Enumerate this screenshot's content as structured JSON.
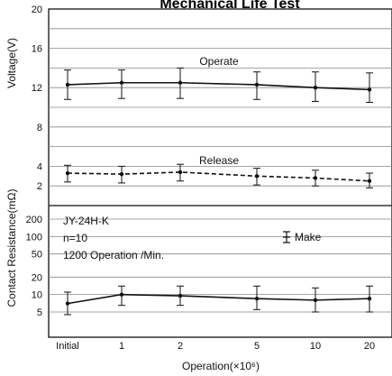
{
  "chart_data": {
    "type": "line",
    "title": "Mechanical Life Test",
    "xlabel": "Operation(×10⁶)",
    "categories": [
      "Initial",
      "1",
      "2",
      "5",
      "10",
      "20"
    ],
    "voltage_panel": {
      "ylabel": "Voltage(V)",
      "ylim": [
        0,
        20
      ],
      "yticks": [
        "20",
        "16",
        "12",
        "8",
        "4",
        "2"
      ],
      "series": [
        {
          "name": "Operate",
          "style": "solid",
          "values": [
            12.3,
            12.5,
            12.5,
            12.3,
            12.0,
            11.8
          ],
          "err_low": [
            10.8,
            10.9,
            10.9,
            10.8,
            10.6,
            10.5
          ],
          "err_high": [
            13.8,
            13.8,
            14.0,
            13.6,
            13.6,
            13.5
          ]
        },
        {
          "name": "Release",
          "style": "dashed",
          "values": [
            3.3,
            3.2,
            3.4,
            3.0,
            2.8,
            2.5
          ],
          "err_low": [
            2.4,
            2.3,
            2.5,
            2.1,
            2.0,
            1.8
          ],
          "err_high": [
            4.1,
            4.0,
            4.2,
            3.8,
            3.6,
            3.3
          ]
        }
      ]
    },
    "resistance_panel": {
      "ylabel": "Contact Resistance(mΩ)",
      "scale": "log",
      "yticks": [
        "200",
        "100",
        "50",
        "20",
        "10",
        "5"
      ],
      "series": [
        {
          "name": "Make",
          "style": "solid",
          "values": [
            7,
            10,
            9.5,
            8.5,
            8,
            8.5
          ],
          "err_low": [
            4.5,
            6.5,
            6.5,
            5.5,
            5,
            5
          ],
          "err_high": [
            11,
            14,
            14,
            14,
            13,
            14
          ]
        }
      ]
    },
    "annotations": {
      "model": "JY-24H-K",
      "n": "n=10",
      "rate": "1200 Operation /Min.",
      "make_legend": "Make",
      "operate_label": "Operate",
      "release_label": "Release"
    },
    "grid": true
  }
}
